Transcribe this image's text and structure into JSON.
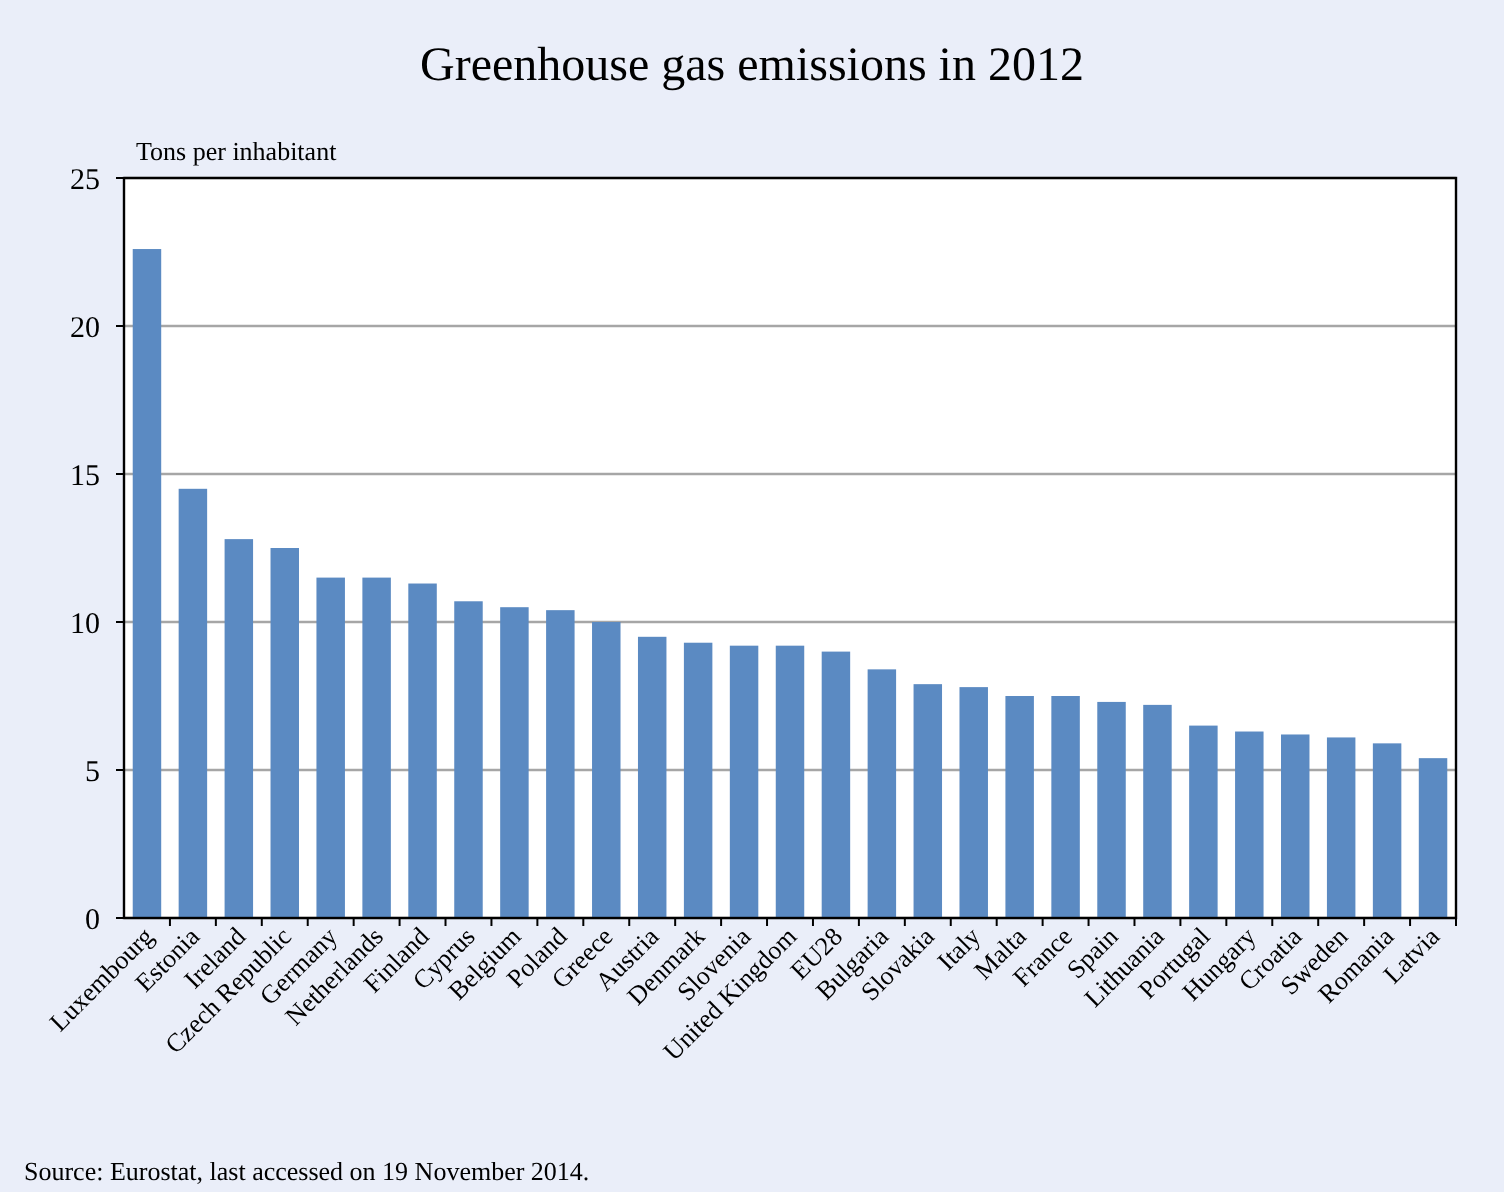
{
  "chart_data": {
    "type": "bar",
    "title": "Greenhouse gas emissions in 2012",
    "ylabel": "Tons per inhabitant",
    "categories": [
      "Luxembourg",
      "Estonia",
      "Ireland",
      "Czech Republic",
      "Germany",
      "Netherlands",
      "Finland",
      "Cyprus",
      "Belgium",
      "Poland",
      "Greece",
      "Austria",
      "Denmark",
      "Slovenia",
      "United Kingdom",
      "EU28",
      "Bulgaria",
      "Slovakia",
      "Italy",
      "Malta",
      "France",
      "Spain",
      "Lithuania",
      "Portugal",
      "Hungary",
      "Croatia",
      "Sweden",
      "Romania",
      "Latvia"
    ],
    "values": [
      22.6,
      14.5,
      12.8,
      12.5,
      11.5,
      11.5,
      11.3,
      10.7,
      10.5,
      10.4,
      10.0,
      9.5,
      9.3,
      9.2,
      9.2,
      9.0,
      8.4,
      7.9,
      7.8,
      7.5,
      7.5,
      7.3,
      7.2,
      6.5,
      6.3,
      6.2,
      6.1,
      5.9,
      5.4
    ],
    "color": "#5b8ac2",
    "ylim": [
      0,
      25
    ],
    "yticks": [
      0,
      5,
      10,
      15,
      20,
      25
    ],
    "grid": "y",
    "annotations": [
      "Source: Eurostat, last accessed on 19 November 2014."
    ]
  }
}
